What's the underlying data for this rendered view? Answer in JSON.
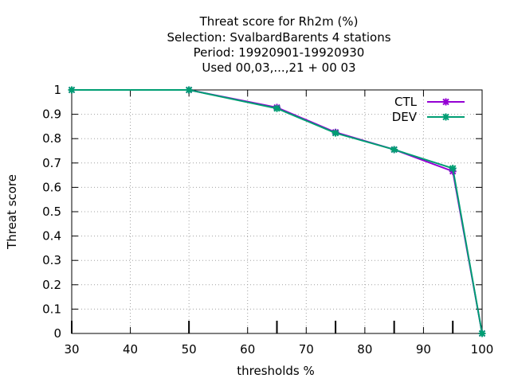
{
  "chart_data": {
    "type": "line",
    "title_lines": [
      "Threat score  for Rh2m (%)",
      "Selection: SvalbardBarents       4 stations",
      "Period: 19920901-19920930",
      "Used  00,03,...,21  + 00 03"
    ],
    "xlabel": "thresholds %",
    "ylabel": "Threat score",
    "xlim": [
      30,
      100
    ],
    "ylim": [
      0,
      1
    ],
    "x_ticks": [
      30,
      40,
      50,
      60,
      70,
      80,
      90,
      100
    ],
    "y_ticks": [
      0,
      0.1,
      0.2,
      0.3,
      0.4,
      0.5,
      0.6,
      0.7,
      0.8,
      0.9,
      1
    ],
    "y_tick_labels": [
      "0",
      "0.1",
      "0.2",
      "0.3",
      "0.4",
      "0.5",
      "0.6",
      "0.7",
      "0.8",
      "0.9",
      "1"
    ],
    "threshold_marks": [
      30,
      50,
      65,
      75,
      85,
      95
    ],
    "grid": true,
    "legend_position": "top-right",
    "x": [
      30,
      50,
      65,
      75,
      85,
      95,
      100
    ],
    "series": [
      {
        "name": "CTL",
        "color": "#9400d3",
        "values": [
          1.0,
          1.0,
          0.928,
          0.826,
          0.755,
          0.666,
          0.0
        ]
      },
      {
        "name": "DEV",
        "color": "#009e73",
        "values": [
          1.0,
          1.0,
          0.924,
          0.823,
          0.755,
          0.678,
          0.0
        ]
      }
    ]
  }
}
